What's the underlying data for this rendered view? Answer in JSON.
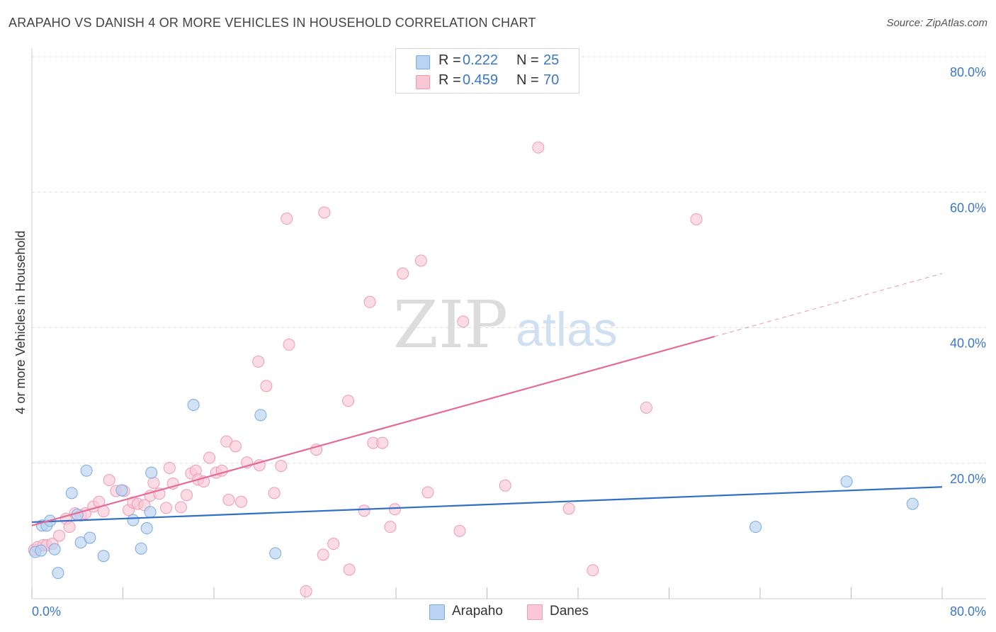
{
  "header": {
    "title": "ARAPAHO VS DANISH 4 OR MORE VEHICLES IN HOUSEHOLD CORRELATION CHART",
    "source": "Source: ZipAtlas.com"
  },
  "legend": {
    "r_label": "R =",
    "n_label": "N =",
    "rows": [
      {
        "r": "0.222",
        "n": "25"
      },
      {
        "r": "0.459",
        "n": "70"
      }
    ]
  },
  "watermark": {
    "zip": "ZIP",
    "atlas": "atlas"
  },
  "colors": {
    "arapaho_fill": "#b9d3f3",
    "arapaho_stroke": "#7aaae0",
    "arapaho_line": "#2f6fc8",
    "danes_fill": "#f9c7d6",
    "danes_stroke": "#ef9ab5",
    "danes_line": "#e46b95",
    "tick_label": "#3b78c4"
  },
  "chart_data": {
    "type": "scatter",
    "title": "ARAPAHO VS DANISH 4 OR MORE VEHICLES IN HOUSEHOLD CORRELATION CHART",
    "xlabel": "",
    "ylabel": "4 or more Vehicles in Household",
    "xlim": [
      0,
      80
    ],
    "ylim": [
      0,
      80
    ],
    "x_tick_labels": [
      "0.0%",
      "80.0%"
    ],
    "y_tick_labels": [
      {
        "value": 20,
        "label": "20.0%"
      },
      {
        "value": 40,
        "label": "40.0%"
      },
      {
        "value": 60,
        "label": "60.0%"
      },
      {
        "value": 80,
        "label": "80.0%"
      }
    ],
    "grid": "horizontal dashed",
    "legend_position": "top-center",
    "series": [
      {
        "name": "Arapaho",
        "r": 0.222,
        "n": 25,
        "trend": {
          "x0": 0,
          "y0": 11.3,
          "x1": 80,
          "y1": 16.5,
          "dashed_from": null
        },
        "points": [
          [
            0.3,
            6.9
          ],
          [
            0.8,
            7.1
          ],
          [
            0.9,
            10.8
          ],
          [
            1.3,
            10.8
          ],
          [
            1.6,
            11.5
          ],
          [
            2.0,
            7.3
          ],
          [
            2.3,
            3.8
          ],
          [
            3.5,
            15.6
          ],
          [
            4.0,
            12.4
          ],
          [
            4.3,
            8.3
          ],
          [
            4.8,
            18.9
          ],
          [
            5.1,
            9.0
          ],
          [
            6.3,
            6.3
          ],
          [
            7.9,
            16.0
          ],
          [
            8.9,
            11.6
          ],
          [
            9.6,
            7.4
          ],
          [
            10.1,
            10.4
          ],
          [
            10.4,
            12.8
          ],
          [
            10.5,
            18.6
          ],
          [
            14.2,
            28.6
          ],
          [
            20.1,
            27.1
          ],
          [
            21.4,
            6.7
          ],
          [
            63.6,
            10.6
          ],
          [
            71.6,
            17.3
          ],
          [
            77.4,
            14.0
          ]
        ]
      },
      {
        "name": "Danes",
        "r": 0.459,
        "n": 70,
        "trend": {
          "x0": 0,
          "y0": 10.8,
          "x1": 80,
          "y1": 48.0,
          "dashed_from": 60
        },
        "points": [
          [
            0.2,
            7.2
          ],
          [
            0.5,
            7.6
          ],
          [
            1.0,
            7.9
          ],
          [
            1.3,
            7.9
          ],
          [
            1.8,
            8.1
          ],
          [
            2.4,
            9.3
          ],
          [
            3.0,
            11.8
          ],
          [
            3.3,
            10.6
          ],
          [
            3.8,
            12.6
          ],
          [
            4.3,
            12.3
          ],
          [
            4.7,
            12.6
          ],
          [
            5.4,
            13.6
          ],
          [
            5.9,
            14.3
          ],
          [
            6.3,
            12.9
          ],
          [
            6.8,
            17.5
          ],
          [
            7.4,
            15.9
          ],
          [
            8.1,
            15.9
          ],
          [
            8.5,
            13.1
          ],
          [
            8.9,
            14.2
          ],
          [
            9.3,
            14.0
          ],
          [
            9.9,
            13.8
          ],
          [
            10.4,
            15.2
          ],
          [
            10.7,
            17.1
          ],
          [
            11.2,
            15.5
          ],
          [
            11.8,
            13.4
          ],
          [
            12.1,
            19.3
          ],
          [
            12.4,
            17.0
          ],
          [
            13.1,
            13.5
          ],
          [
            13.6,
            15.3
          ],
          [
            14.0,
            18.5
          ],
          [
            14.4,
            18.9
          ],
          [
            14.6,
            17.6
          ],
          [
            15.1,
            17.3
          ],
          [
            15.6,
            20.8
          ],
          [
            16.2,
            18.6
          ],
          [
            16.7,
            18.9
          ],
          [
            17.1,
            23.2
          ],
          [
            17.3,
            14.6
          ],
          [
            17.9,
            22.5
          ],
          [
            18.4,
            14.3
          ],
          [
            18.9,
            20.1
          ],
          [
            19.9,
            35.0
          ],
          [
            20.0,
            19.7
          ],
          [
            20.6,
            31.4
          ],
          [
            21.3,
            15.6
          ],
          [
            21.9,
            19.6
          ],
          [
            22.4,
            56.1
          ],
          [
            22.6,
            37.5
          ],
          [
            24.1,
            1.1
          ],
          [
            25.0,
            22.0
          ],
          [
            25.6,
            6.5
          ],
          [
            25.7,
            57.0
          ],
          [
            26.5,
            8.1
          ],
          [
            27.8,
            29.2
          ],
          [
            27.9,
            4.3
          ],
          [
            29.2,
            13.0
          ],
          [
            29.7,
            43.8
          ],
          [
            30.0,
            23.0
          ],
          [
            30.8,
            23.0
          ],
          [
            31.5,
            10.6
          ],
          [
            31.9,
            13.2
          ],
          [
            32.6,
            48.0
          ],
          [
            34.2,
            49.9
          ],
          [
            34.8,
            15.7
          ],
          [
            37.6,
            10.0
          ],
          [
            37.9,
            40.9
          ],
          [
            41.6,
            16.7
          ],
          [
            44.5,
            66.6
          ],
          [
            47.2,
            13.3
          ],
          [
            49.3,
            4.2
          ],
          [
            54.0,
            28.2
          ],
          [
            58.4,
            56.0
          ]
        ]
      }
    ]
  },
  "bottom_legend": {
    "items": [
      {
        "label": "Arapaho"
      },
      {
        "label": "Danes"
      }
    ]
  }
}
